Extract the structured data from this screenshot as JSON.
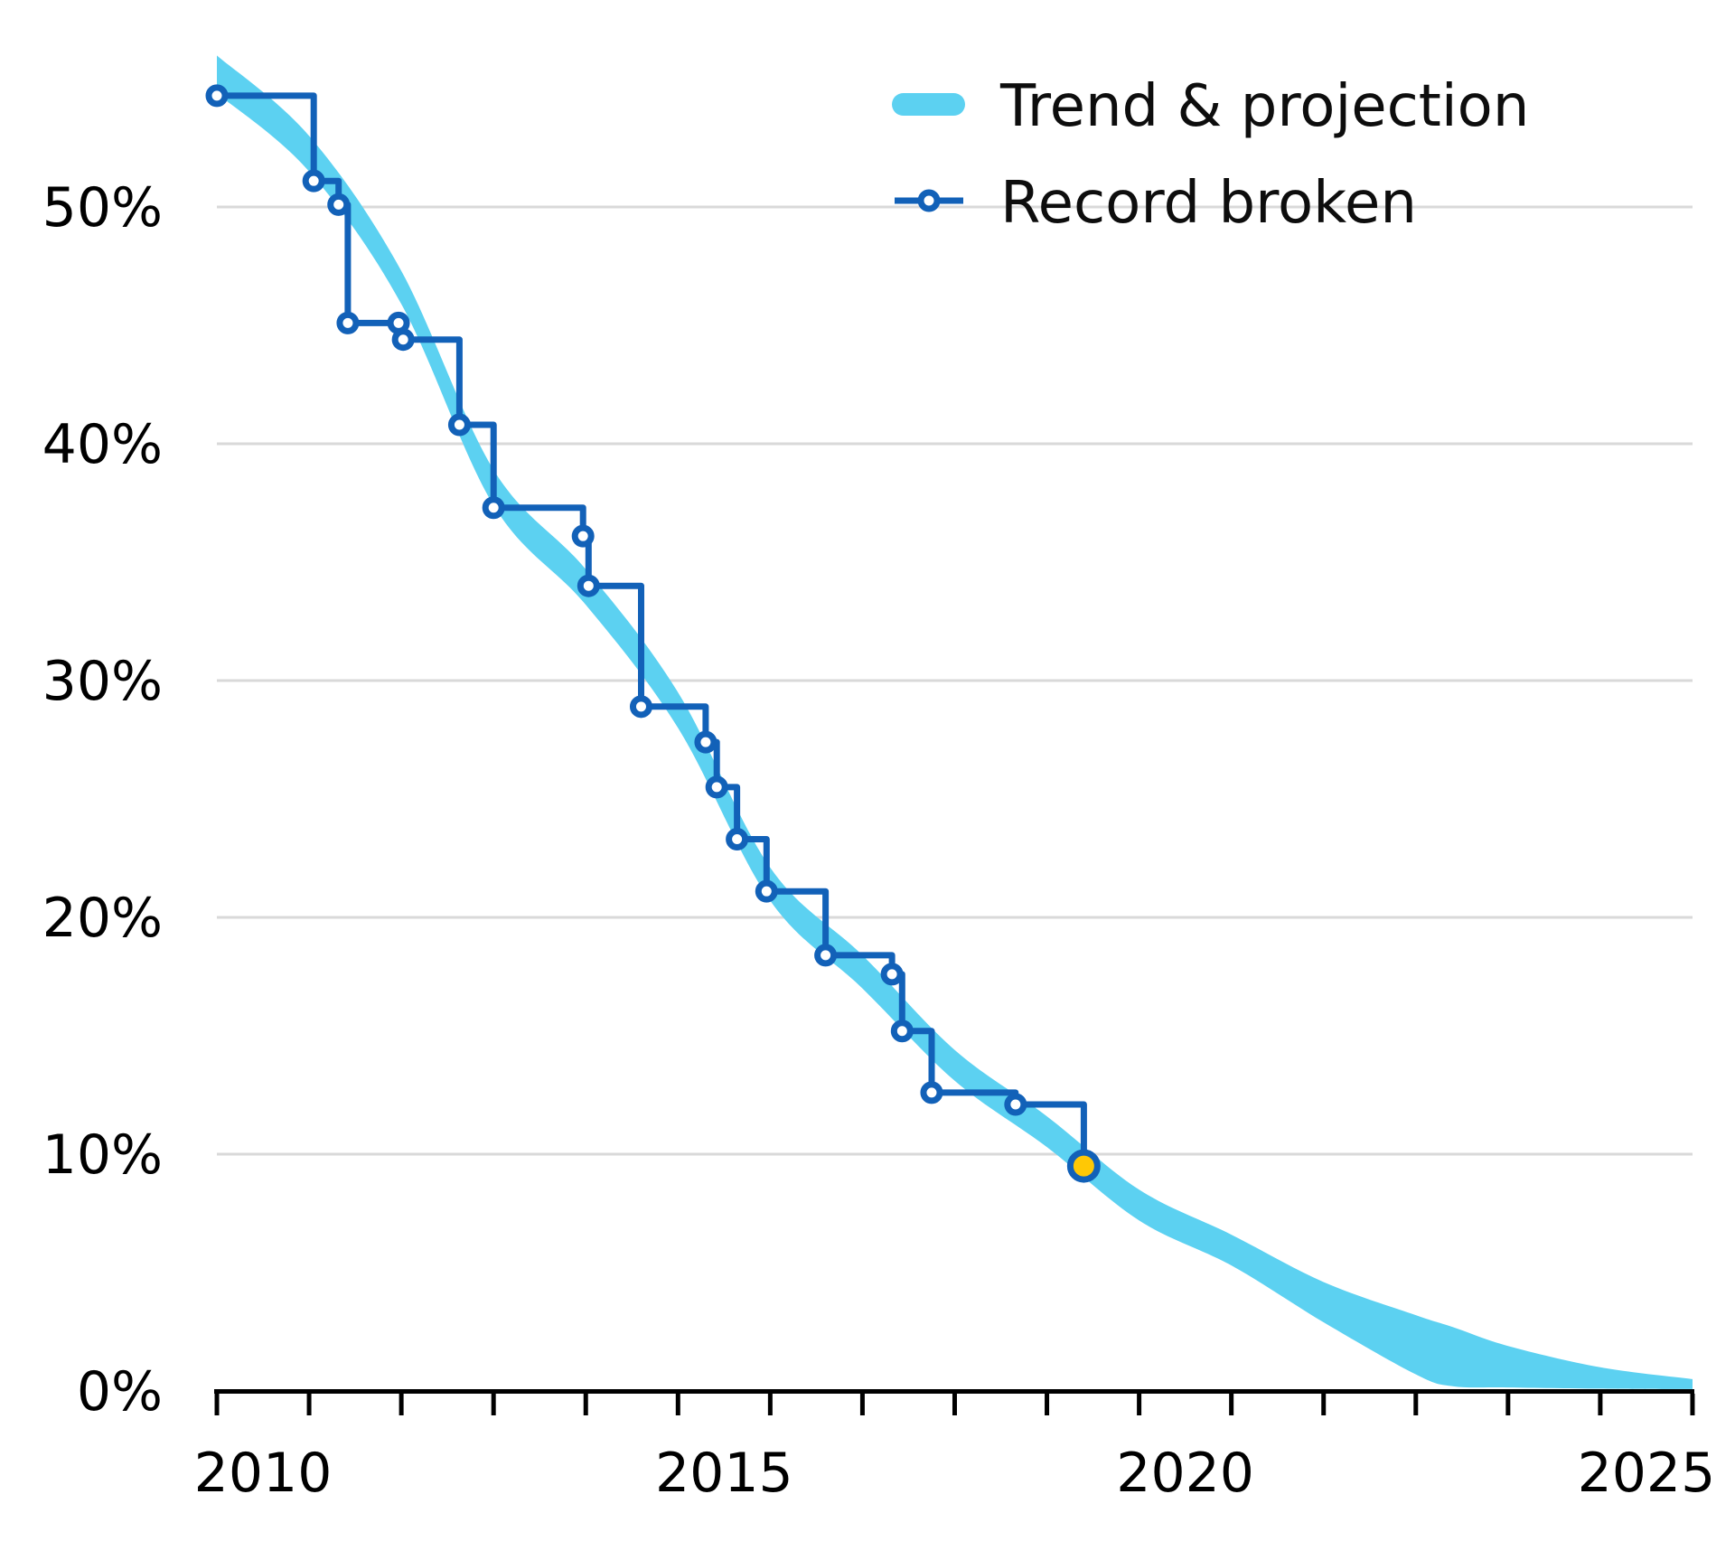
{
  "legend": {
    "trend_label": "Trend & projection",
    "record_label": "Record broken"
  },
  "colors": {
    "trend_band": "#5CD1F1",
    "record_line": "#1261B8",
    "record_marker_fill": "#FFFFFF",
    "latest_marker_fill": "#FFC805",
    "gridline": "#D9D9D9",
    "axis": "#000000",
    "text": "#000000",
    "background": "#FFFFFF"
  },
  "chart_data": {
    "type": "line",
    "title": "",
    "xlabel": "",
    "ylabel": "",
    "x_range": [
      2010,
      2026
    ],
    "y_range": [
      0,
      57
    ],
    "grid": "horizontal",
    "legend_position": "top-right",
    "x_axis": {
      "tick_years": [
        2010,
        2011,
        2012,
        2013,
        2014,
        2015,
        2016,
        2017,
        2018,
        2019,
        2020,
        2021,
        2022,
        2023,
        2024,
        2025,
        2026
      ],
      "labels": [
        {
          "at": 2010.5,
          "text": "2010"
        },
        {
          "at": 2015.5,
          "text": "2015"
        },
        {
          "at": 2020.5,
          "text": "2020"
        },
        {
          "at": 2025.5,
          "text": "2025"
        }
      ]
    },
    "y_axis": {
      "gridline_values": [
        10,
        20,
        30,
        40,
        50
      ],
      "labels": [
        {
          "value": 0,
          "text": "0%"
        },
        {
          "value": 10,
          "text": "10%"
        },
        {
          "value": 20,
          "text": "20%"
        },
        {
          "value": 30,
          "text": "30%"
        },
        {
          "value": 40,
          "text": "40%"
        },
        {
          "value": 50,
          "text": "50%"
        }
      ]
    },
    "series": [
      {
        "name": "Trend & projection",
        "type": "band",
        "color": "#5CD1F1",
        "points": [
          {
            "x": 2010.0,
            "top": 56.4,
            "bottom": 54.8
          },
          {
            "x": 2011.0,
            "top": 53.0,
            "bottom": 51.5
          },
          {
            "x": 2012.0,
            "top": 47.3,
            "bottom": 45.9
          },
          {
            "x": 2013.0,
            "top": 38.9,
            "bottom": 37.4
          },
          {
            "x": 2014.0,
            "top": 34.7,
            "bottom": 33.2
          },
          {
            "x": 2015.0,
            "top": 29.5,
            "bottom": 28.0
          },
          {
            "x": 2016.0,
            "top": 22.1,
            "bottom": 20.7
          },
          {
            "x": 2017.0,
            "top": 18.4,
            "bottom": 17.0
          },
          {
            "x": 2018.0,
            "top": 14.4,
            "bottom": 13.1
          },
          {
            "x": 2019.0,
            "top": 11.6,
            "bottom": 10.3
          },
          {
            "x": 2020.0,
            "top": 8.5,
            "bottom": 7.2
          },
          {
            "x": 2021.0,
            "top": 6.6,
            "bottom": 5.3
          },
          {
            "x": 2022.0,
            "top": 4.6,
            "bottom": 2.9
          },
          {
            "x": 2023.0,
            "top": 3.2,
            "bottom": 0.7
          },
          {
            "x": 2023.4,
            "top": 2.7,
            "bottom": 0.2
          },
          {
            "x": 2024.0,
            "top": 1.9,
            "bottom": 0.15
          },
          {
            "x": 2025.0,
            "top": 1.0,
            "bottom": 0.1
          },
          {
            "x": 2026.0,
            "top": 0.5,
            "bottom": 0.08
          }
        ]
      },
      {
        "name": "Record broken",
        "type": "step",
        "color": "#1261B8",
        "marker_fill": "#FFFFFF",
        "points": [
          [
            2010.0,
            54.7
          ],
          [
            2011.05,
            51.1
          ],
          [
            2011.32,
            50.1
          ],
          [
            2011.42,
            45.1
          ],
          [
            2011.97,
            45.1
          ],
          [
            2012.02,
            44.4
          ],
          [
            2012.63,
            40.8
          ],
          [
            2013.0,
            37.3
          ],
          [
            2013.97,
            36.1
          ],
          [
            2014.03,
            34.0
          ],
          [
            2014.6,
            28.9
          ],
          [
            2015.3,
            27.4
          ],
          [
            2015.42,
            25.5
          ],
          [
            2015.64,
            23.3
          ],
          [
            2015.96,
            21.1
          ],
          [
            2016.6,
            18.4
          ],
          [
            2017.32,
            17.6
          ],
          [
            2017.43,
            15.2
          ],
          [
            2017.75,
            12.6
          ],
          [
            2018.66,
            12.1
          ]
        ],
        "latest_point": {
          "x": 2019.4,
          "y": 9.5,
          "fill": "#FFC805"
        }
      }
    ]
  }
}
